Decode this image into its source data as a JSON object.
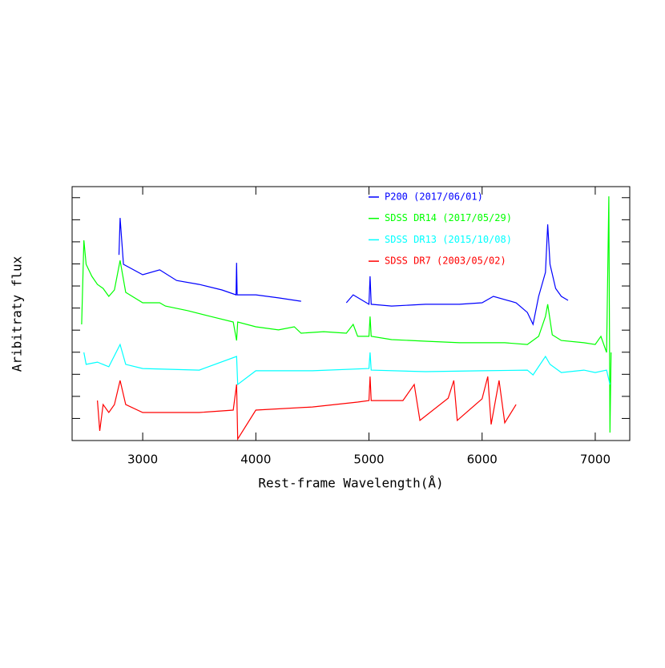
{
  "chart_data": {
    "type": "line",
    "xlabel": "Rest-frame Wavelength(Å)",
    "ylabel": "Aribitraty flux",
    "xlim": [
      2376,
      7305
    ],
    "xticks": [
      3000,
      4000,
      5000,
      6000,
      7000
    ],
    "ylim": [
      0,
      11.5
    ],
    "yticks": [
      1,
      2,
      3,
      4,
      5,
      6,
      7,
      8,
      9,
      10,
      11
    ],
    "series": [
      {
        "name": "P200 (2017/06/01)",
        "color": "#0000ff",
        "x": [
          2790,
          2800,
          2830,
          3000,
          3150,
          3300,
          3500,
          3700,
          3825,
          3830,
          3835,
          4000,
          4200,
          4400,
          null,
          4800,
          4860,
          5000,
          5010,
          5020,
          5200,
          5500,
          5800,
          6000,
          6100,
          6300,
          6400,
          6450,
          6500,
          6560,
          6580,
          6600,
          6650,
          6700,
          6760
        ],
        "values": [
          8.41,
          10.08,
          7.98,
          7.51,
          7.73,
          7.25,
          7.07,
          6.82,
          6.6,
          8.05,
          6.6,
          6.6,
          6.46,
          6.31,
          null,
          6.24,
          6.6,
          6.17,
          7.44,
          6.17,
          6.09,
          6.17,
          6.17,
          6.24,
          6.53,
          6.24,
          5.8,
          5.26,
          6.53,
          7.62,
          9.79,
          7.98,
          6.89,
          6.53,
          6.35
        ]
      },
      {
        "name": "SDSS DR14 (2017/05/29)",
        "color": "#00ff00",
        "x": [
          2460,
          2480,
          2500,
          2550,
          2600,
          2650,
          2700,
          2750,
          2800,
          2850,
          3000,
          3150,
          3200,
          3400,
          3600,
          3800,
          3830,
          3840,
          4000,
          4200,
          4340,
          4400,
          4600,
          4800,
          4860,
          4900,
          5000,
          5010,
          5020,
          5200,
          5500,
          5800,
          6000,
          6200,
          6400,
          6500,
          6560,
          6580,
          6620,
          6700,
          6900,
          7000,
          7050,
          7100,
          7120,
          7130,
          7140
        ],
        "values": [
          5.26,
          9.07,
          7.98,
          7.44,
          7.07,
          6.89,
          6.53,
          6.82,
          8.16,
          6.71,
          6.24,
          6.24,
          6.09,
          5.88,
          5.62,
          5.37,
          4.53,
          5.37,
          5.15,
          5.01,
          5.15,
          4.86,
          4.93,
          4.86,
          5.26,
          4.72,
          4.72,
          5.62,
          4.72,
          4.57,
          4.5,
          4.43,
          4.43,
          4.43,
          4.35,
          4.72,
          5.62,
          6.17,
          4.79,
          4.53,
          4.43,
          4.35,
          4.72,
          3.99,
          11.06,
          0.36,
          3.99
        ]
      },
      {
        "name": "SDSS DR13 (2015/10/08)",
        "color": "#00ffff",
        "x": [
          2480,
          2500,
          2600,
          2700,
          2800,
          2850,
          3000,
          3500,
          3830,
          3840,
          4000,
          4500,
          5000,
          5010,
          5020,
          5500,
          6000,
          6400,
          6450,
          6560,
          6600,
          6700,
          6900,
          7000,
          7100,
          7130
        ],
        "values": [
          3.99,
          3.45,
          3.55,
          3.34,
          4.35,
          3.45,
          3.26,
          3.19,
          3.81,
          2.54,
          3.16,
          3.16,
          3.26,
          3.99,
          3.19,
          3.12,
          3.16,
          3.19,
          2.97,
          3.81,
          3.45,
          3.08,
          3.19,
          3.08,
          3.19,
          2.54
        ]
      },
      {
        "name": "SDSS DR7 (2003/05/02)",
        "color": "#ff0000",
        "x": [
          2600,
          2620,
          2650,
          2700,
          2750,
          2800,
          2850,
          3000,
          3200,
          3500,
          3800,
          3830,
          3840,
          4000,
          4500,
          4900,
          5000,
          5010,
          5020,
          5300,
          5400,
          5450,
          5700,
          5750,
          5780,
          6000,
          6050,
          6080,
          6150,
          6200,
          6300
        ],
        "values": [
          1.81,
          0.44,
          1.63,
          1.27,
          1.63,
          2.72,
          1.63,
          1.27,
          1.27,
          1.27,
          1.38,
          2.54,
          0.07,
          1.38,
          1.52,
          1.74,
          1.81,
          2.9,
          1.81,
          1.81,
          2.54,
          0.91,
          1.92,
          2.72,
          0.91,
          1.89,
          2.9,
          0.73,
          2.72,
          0.8,
          1.63
        ]
      }
    ]
  }
}
